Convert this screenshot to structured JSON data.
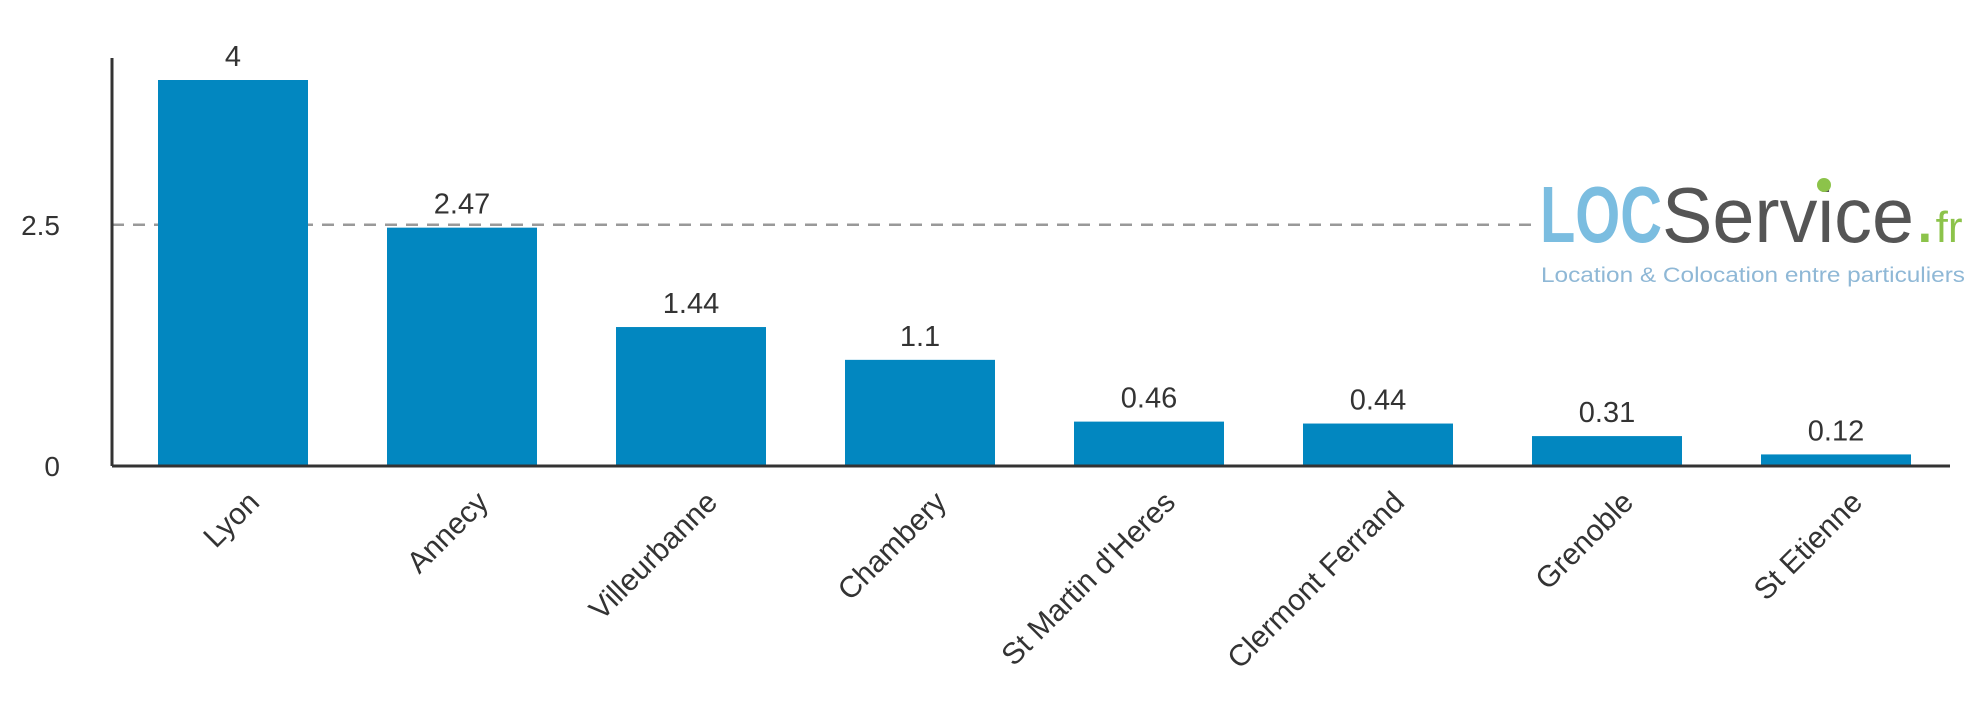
{
  "chart_data": {
    "type": "bar",
    "categories": [
      "Lyon",
      "Annecy",
      "Villeurbanne",
      "Chambery",
      "St Martin d'Heres",
      "Clermont Ferrand",
      "Grenoble",
      "St Etienne"
    ],
    "values": [
      4,
      2.47,
      1.44,
      1.1,
      0.46,
      0.44,
      0.31,
      0.12
    ],
    "value_labels": [
      "4",
      "2.47",
      "1.44",
      "1.1",
      "0.46",
      "0.44",
      "0.31",
      "0.12"
    ],
    "yticks": [
      {
        "value": 0,
        "label": "0"
      },
      {
        "value": 2.5,
        "label": "2.5"
      }
    ],
    "ylim": [
      0,
      4.2
    ],
    "reference_line": 2.5,
    "title": "",
    "xlabel": "",
    "ylabel": "",
    "grid": false,
    "bar_color": "#0287c0"
  },
  "watermark": {
    "brand_loc": "LOC",
    "brand_service": "Service",
    "brand_dot": ".",
    "brand_fr": "fr",
    "tagline": "Location & Colocation entre particuliers",
    "colors": {
      "loc": "#7bbde0",
      "service": "#555555",
      "accent": "#8cc34a",
      "tagline": "#8fb8d6"
    }
  }
}
